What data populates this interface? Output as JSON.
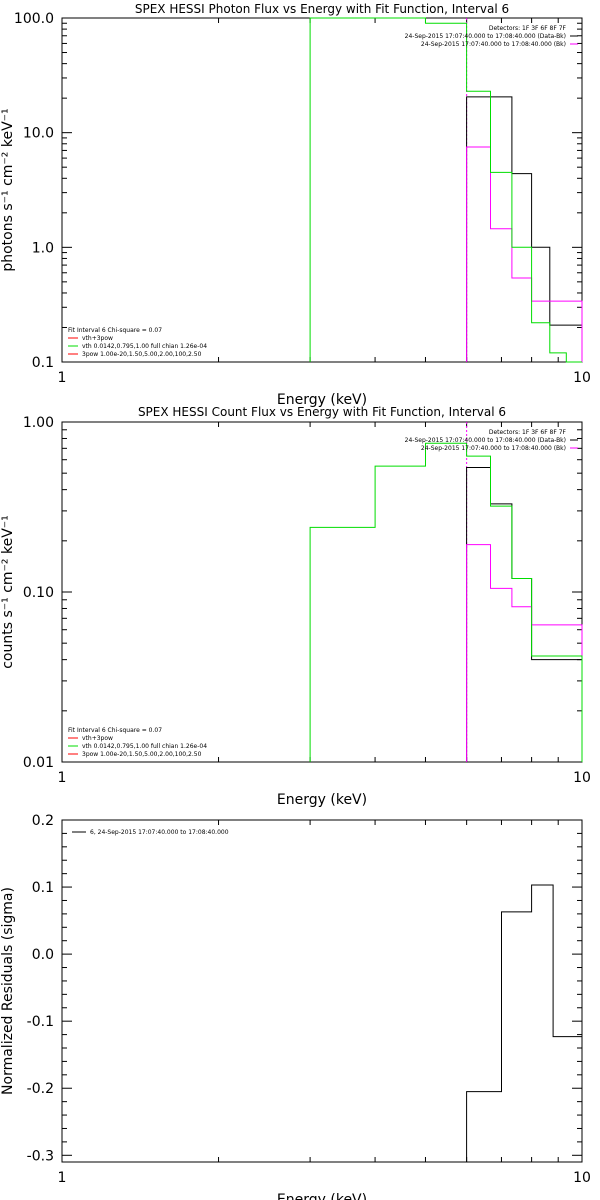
{
  "colors": {
    "data": "#000000",
    "background": "#ff00ff",
    "fit": "#00dd00",
    "component": "#ff0000"
  },
  "chart_data": [
    {
      "type": "line",
      "title": "SPEX HESSI Photon Flux vs Energy with Fit Function, Interval 6",
      "xlabel": "Energy (keV)",
      "ylabel": "photons s⁻¹ cm⁻² keV⁻¹",
      "xscale": "log",
      "yscale": "log",
      "xlim": [
        1,
        10
      ],
      "ylim": [
        0.1,
        100
      ],
      "xticks": [
        {
          "v": 1,
          "label": "1"
        },
        {
          "v": 10,
          "label": "10"
        }
      ],
      "yticks": [
        {
          "v": 0.1,
          "label": "0.1"
        },
        {
          "v": 1,
          "label": "1.0"
        },
        {
          "v": 10,
          "label": "10.0"
        },
        {
          "v": 100,
          "label": "100.0"
        }
      ],
      "vline": 6.0,
      "legend_topright": [
        "Detectors: 1F 3F 6F 8F 7F",
        "24-Sep-2015 17:07:40.000 to 17:08:40.000 (Data-Bk)",
        "24-Sep-2015 17:07:40.000 to 17:08:40.000 (Bk)"
      ],
      "legend_topright_colors": [
        "#000000",
        "#000000",
        "#ff00ff"
      ],
      "legend_bottomleft": [
        "Fit Interval 6   Chi-square = 0.07",
        "vth+3pow",
        "vth 0.0142,0.795,1.00  full chian 1.26e-04",
        "3pow 1.00e-20,1.50,5.00,2.00,100,2.50"
      ],
      "legend_bottomleft_colors": [
        "#000000",
        "#ff0000",
        "#00dd00",
        "#ff0000"
      ],
      "series": [
        {
          "name": "Data-Bk",
          "color": "#000000",
          "bins": [
            6.0,
            6.67,
            7.33,
            8.0,
            8.67,
            9.33,
            10.0
          ],
          "values": [
            20.5,
            20.5,
            4.4,
            1.0,
            0.21,
            0.21
          ]
        },
        {
          "name": "Bk",
          "color": "#ff00ff",
          "bins": [
            6.0,
            6.67,
            7.33,
            8.0,
            8.67,
            9.33,
            10.0
          ],
          "values": [
            7.5,
            1.45,
            0.54,
            0.34,
            0.34,
            0.34
          ]
        },
        {
          "name": "vth+3pow",
          "color": "#00dd00",
          "bins": [
            3.0,
            3.5,
            4.0,
            5.0,
            6.0,
            6.67,
            7.33,
            8.0,
            8.67,
            9.33,
            10.0
          ],
          "values": [
            150,
            150,
            130,
            90,
            23.0,
            4.5,
            1.0,
            0.22,
            0.12,
            0.06
          ]
        }
      ]
    },
    {
      "type": "line",
      "title": "SPEX HESSI Count Flux vs Energy with Fit Function, Interval 6",
      "xlabel": "Energy (keV)",
      "ylabel": "counts s⁻¹ cm⁻² keV⁻¹",
      "xscale": "log",
      "yscale": "log",
      "xlim": [
        1,
        10
      ],
      "ylim": [
        0.01,
        1
      ],
      "xticks": [
        {
          "v": 1,
          "label": "1"
        },
        {
          "v": 10,
          "label": "10"
        }
      ],
      "yticks": [
        {
          "v": 0.01,
          "label": "0.01"
        },
        {
          "v": 0.1,
          "label": "0.10"
        },
        {
          "v": 1,
          "label": "1.00"
        }
      ],
      "vline": 6.0,
      "legend_topright": [
        "Detectors: 1F 3F 6F 8F 7F",
        "24-Sep-2015 17:07:40.000 to 17:08:40.000 (Data-Bk)",
        "24-Sep-2015 17:07:40.000 to 17:08:40.000 (Bk)"
      ],
      "legend_topright_colors": [
        "#000000",
        "#000000",
        "#ff00ff"
      ],
      "legend_bottomleft": [
        "Fit Interval 6   Chi-square = 0.07",
        "vth+3pow",
        "vth 0.0142,0.795,1.00  full chian 1.26e-04",
        "3pow 1.00e-20,1.50,5.00,2.00,100,2.50"
      ],
      "legend_bottomleft_colors": [
        "#000000",
        "#ff0000",
        "#00dd00",
        "#ff0000"
      ],
      "series": [
        {
          "name": "Data-Bk",
          "color": "#000000",
          "bins": [
            6.0,
            6.67,
            7.33,
            8.0,
            8.67,
            9.33,
            10.0
          ],
          "values": [
            0.54,
            0.33,
            0.12,
            0.04,
            0.04,
            0.04
          ]
        },
        {
          "name": "Bk",
          "color": "#ff00ff",
          "bins": [
            6.0,
            6.67,
            7.33,
            8.0,
            8.67,
            9.33,
            10.0
          ],
          "values": [
            0.19,
            0.105,
            0.082,
            0.064,
            0.064,
            0.064
          ]
        },
        {
          "name": "vth+3pow",
          "color": "#00dd00",
          "bins": [
            3.0,
            3.5,
            4.0,
            5.0,
            6.0,
            6.67,
            7.33,
            8.0,
            8.67,
            9.33,
            10.0
          ],
          "values": [
            0.24,
            0.24,
            0.55,
            0.75,
            0.63,
            0.32,
            0.12,
            0.042,
            0.042,
            0.042
          ]
        }
      ]
    },
    {
      "type": "line",
      "title": "",
      "xlabel": "Energy (keV)",
      "ylabel": "Normalized Residuals (sigma)",
      "xscale": "log",
      "yscale": "linear",
      "xlim": [
        1,
        10
      ],
      "ylim": [
        -0.31,
        0.2
      ],
      "xticks": [
        {
          "v": 1,
          "label": "1"
        },
        {
          "v": 10,
          "label": "10"
        }
      ],
      "yticks": [
        {
          "v": -0.3,
          "label": "-0.3"
        },
        {
          "v": -0.2,
          "label": "-0.2"
        },
        {
          "v": -0.1,
          "label": "-0.1"
        },
        {
          "v": 0,
          "label": "0.0"
        },
        {
          "v": 0.1,
          "label": "0.1"
        },
        {
          "v": 0.2,
          "label": "0.2"
        }
      ],
      "legend_topleft": [
        "6, 24-Sep-2015 17:07:40.000 to 17:08:40.000"
      ],
      "series": [
        {
          "name": "6, 24-Sep-2015 17:07:40.000 to 17:08:40.000",
          "color": "#000000",
          "bins": [
            6.0,
            7.0,
            8.0,
            8.8,
            10.0
          ],
          "values": [
            -0.205,
            0.063,
            0.103,
            -0.123
          ],
          "drop_to_bottom_at_start": true
        }
      ]
    }
  ]
}
